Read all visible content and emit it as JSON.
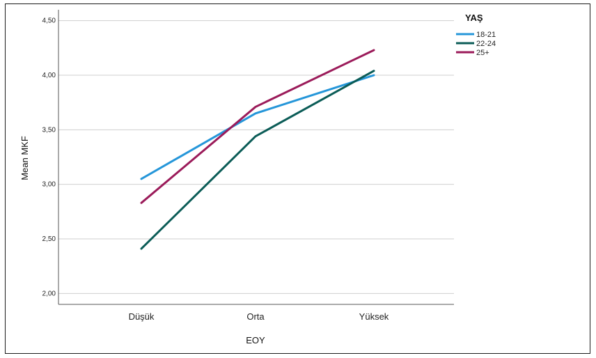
{
  "chart_data": {
    "type": "line",
    "title": "",
    "xlabel": "EOY",
    "ylabel": "Mean MKF",
    "categories": [
      "Düşük",
      "Orta",
      "Yüksek"
    ],
    "ylim": [
      1.9,
      4.6
    ],
    "yticks": [
      "2,00",
      "2,50",
      "3,00",
      "3,50",
      "4,00",
      "4,50"
    ],
    "ytick_values": [
      2.0,
      2.5,
      3.0,
      3.5,
      4.0,
      4.5
    ],
    "grid": true,
    "legend": {
      "title": "YAŞ",
      "placement": "top-right"
    },
    "series": [
      {
        "name": "18-21",
        "color": "#2596d9",
        "values": [
          3.05,
          3.65,
          4.0
        ]
      },
      {
        "name": "22-24",
        "color": "#0b5c57",
        "values": [
          2.41,
          3.44,
          4.04
        ]
      },
      {
        "name": "25+",
        "color": "#9b1b5a",
        "values": [
          2.83,
          3.71,
          4.23
        ]
      }
    ]
  }
}
